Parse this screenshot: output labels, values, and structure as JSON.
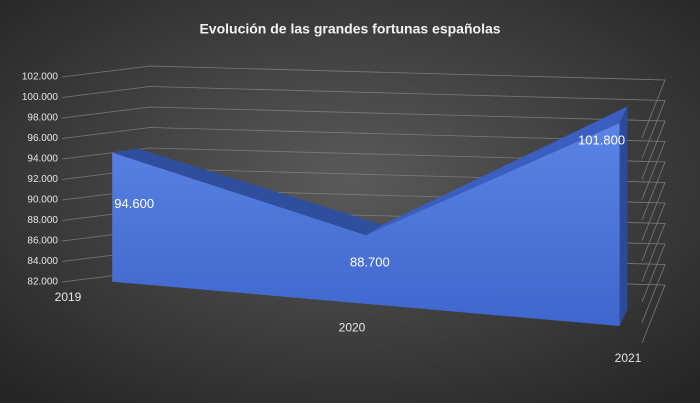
{
  "chart_data": {
    "type": "area3d",
    "title": "Evolución de las grandes fortunas españolas",
    "categories": [
      "2019",
      "2020",
      "2021"
    ],
    "values": [
      94600,
      88700,
      101800
    ],
    "value_labels": [
      "94.600",
      "88.700",
      "101.800"
    ],
    "color": "#4a72d8",
    "ylim": [
      82000,
      102000
    ],
    "yticks": [
      {
        "value": 82000,
        "label": "82.000"
      },
      {
        "value": 84000,
        "label": "84.000"
      },
      {
        "value": 86000,
        "label": "86.000"
      },
      {
        "value": 88000,
        "label": "88.000"
      },
      {
        "value": 90000,
        "label": "90.000"
      },
      {
        "value": 92000,
        "label": "92.000"
      },
      {
        "value": 94000,
        "label": "94.000"
      },
      {
        "value": 96000,
        "label": "96.000"
      },
      {
        "value": 98000,
        "label": "98.000"
      },
      {
        "value": 100000,
        "label": "100.000"
      },
      {
        "value": 102000,
        "label": "102.000"
      }
    ],
    "grid": true
  }
}
